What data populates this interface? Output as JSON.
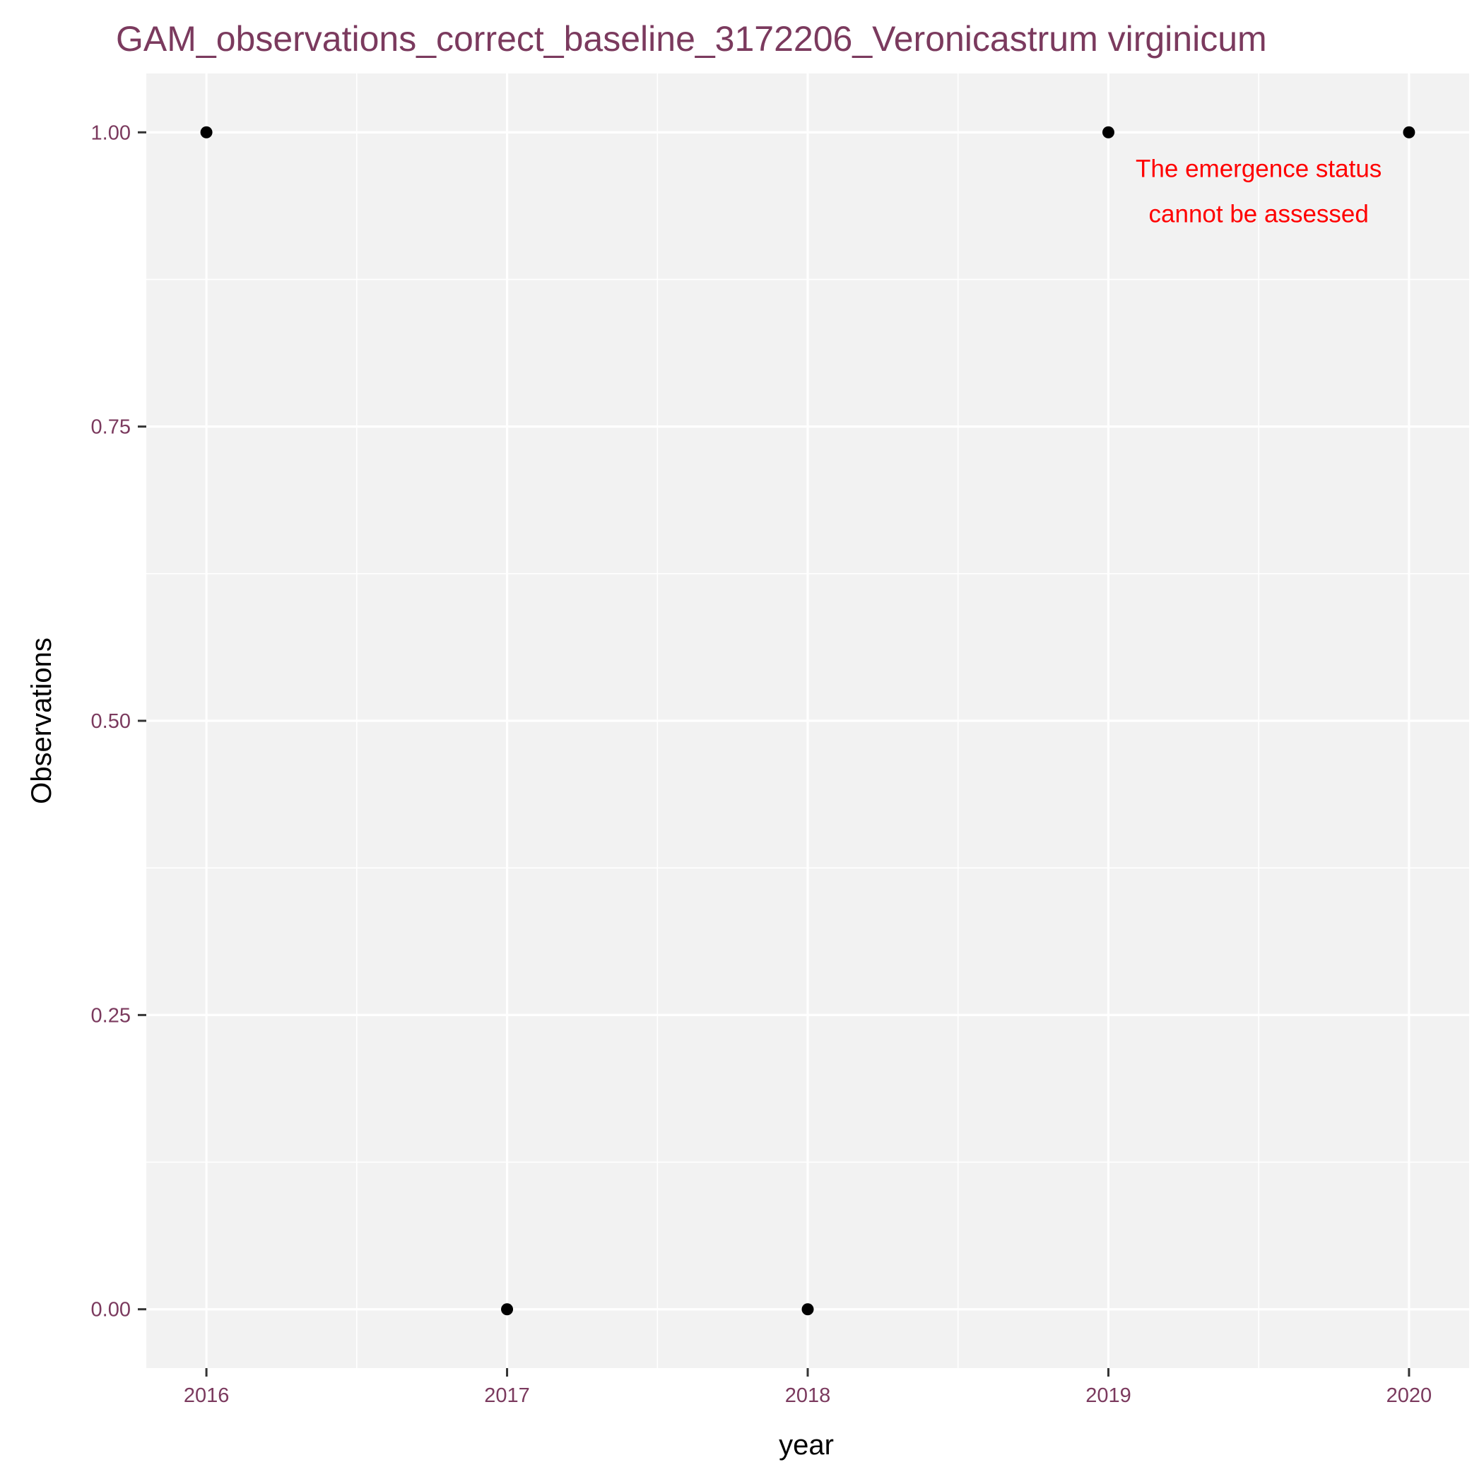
{
  "colors": {
    "title": "#7B3A5E",
    "tick_label": "#7B3A5E",
    "panel_background": "#F2F2F2",
    "grid": "#FFFFFF",
    "point": "#000000",
    "annotation": "#FF0000",
    "axis_title": "#000000"
  },
  "chart_data": {
    "type": "scatter",
    "title": "GAM_observations_correct_baseline_3172206_Veronicastrum virginicum",
    "xlabel": "year",
    "ylabel": "Observations",
    "x_ticks": [
      "2016",
      "2017",
      "2018",
      "2019",
      "2020"
    ],
    "y_ticks": [
      "0.00",
      "0.25",
      "0.50",
      "0.75",
      "1.00"
    ],
    "xlim": [
      2015.8,
      2020.2
    ],
    "ylim": [
      -0.05,
      1.05
    ],
    "grid": true,
    "points": [
      {
        "x": 2016,
        "y": 1
      },
      {
        "x": 2017,
        "y": 0
      },
      {
        "x": 2018,
        "y": 0
      },
      {
        "x": 2019,
        "y": 1
      },
      {
        "x": 2020,
        "y": 1
      }
    ],
    "annotation": {
      "lines": [
        "The emergence status",
        "cannot be assessed"
      ],
      "x": 2019.5,
      "y": 0.95
    }
  }
}
